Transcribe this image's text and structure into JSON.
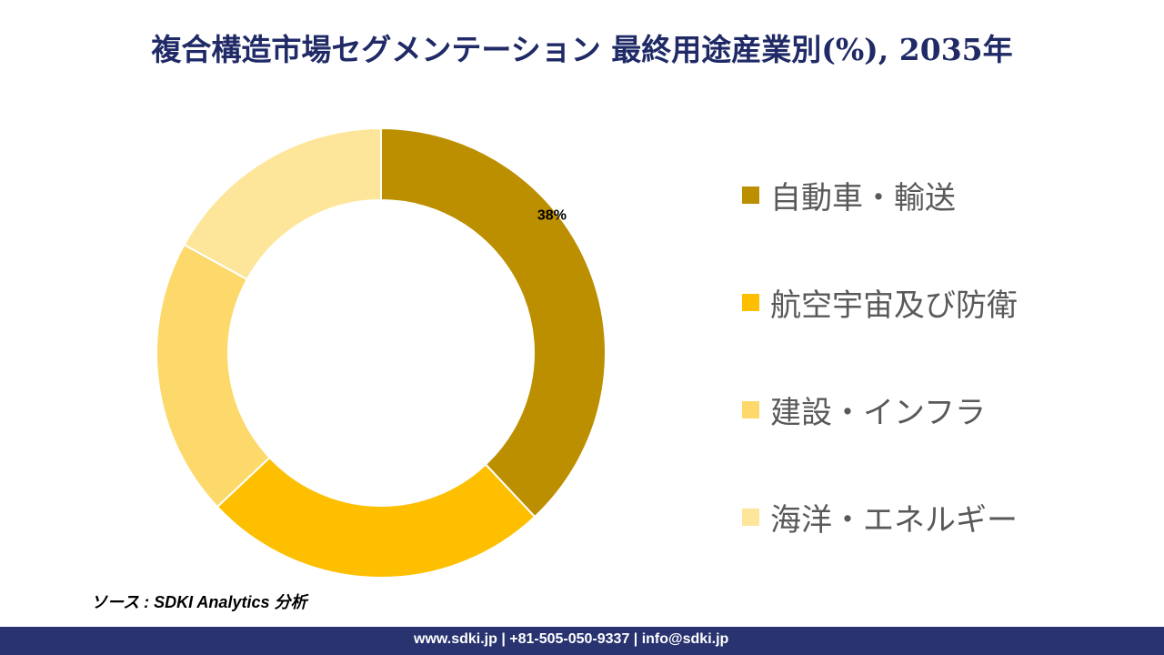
{
  "title": "複合構造市場セグメンテーション 最終用途産業別(%), 2035年",
  "chart_data": {
    "type": "pie",
    "donut": true,
    "categories": [
      "自動車・輸送",
      "航空宇宙及び防衛",
      "建設・インフラ",
      "海洋・エネルギー"
    ],
    "values": [
      38,
      25,
      20,
      17
    ],
    "colors": [
      "#BC8F00",
      "#FDBF00",
      "#FCD96A",
      "#FDE69A"
    ],
    "data_labels": [
      "38%",
      "",
      "",
      ""
    ],
    "legend_position": "right"
  },
  "source": "ソース : SDKI Analytics 分析",
  "footer": "www.sdki.jp | +81-505-050-9337 | info@sdki.jp"
}
